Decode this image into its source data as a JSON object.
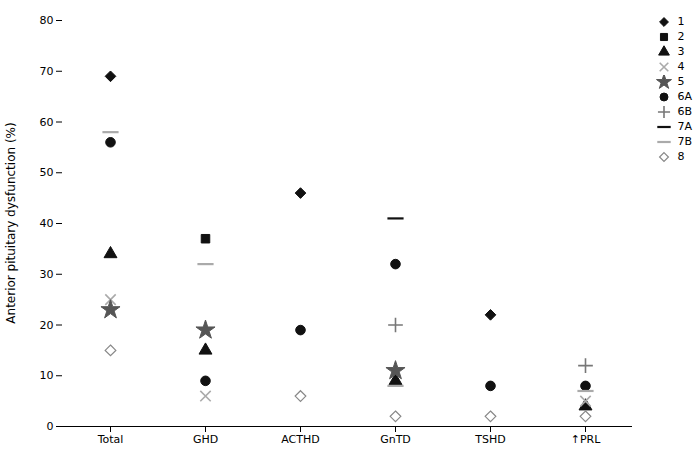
{
  "chart_data": {
    "type": "scatter",
    "ylabel": "Anterior pituitary dysfunction (%)",
    "categories": [
      "Total",
      "GHD",
      "ACTHD",
      "GnTD",
      "TSHD",
      "↑PRL"
    ],
    "ylim": [
      0,
      80
    ],
    "yticks": [
      0,
      10,
      20,
      30,
      40,
      50,
      60,
      70,
      80
    ],
    "legend": "upper right",
    "series": [
      {
        "name": "1",
        "marker": "diamond",
        "color": "#111111",
        "values": [
          69,
          null,
          46,
          null,
          22,
          null
        ]
      },
      {
        "name": "2",
        "marker": "square",
        "color": "#111111",
        "values": [
          null,
          37,
          null,
          null,
          null,
          null
        ]
      },
      {
        "name": "3",
        "marker": "triangle",
        "color": "#111111",
        "values": [
          34,
          15,
          null,
          9,
          null,
          4
        ]
      },
      {
        "name": "4",
        "marker": "x",
        "color": "#aaaaaa",
        "values": [
          25,
          6,
          null,
          null,
          null,
          5
        ]
      },
      {
        "name": "5",
        "marker": "star",
        "color": "#555555",
        "values": [
          23,
          19,
          null,
          11,
          null,
          null
        ]
      },
      {
        "name": "6A",
        "marker": "circle",
        "color": "#111111",
        "values": [
          56,
          9,
          19,
          32,
          8,
          8
        ]
      },
      {
        "name": "6B",
        "marker": "plus",
        "color": "#777777",
        "values": [
          null,
          null,
          null,
          20,
          null,
          12
        ]
      },
      {
        "name": "7A",
        "marker": "hline",
        "color": "#111111",
        "values": [
          null,
          null,
          null,
          41,
          null,
          null
        ]
      },
      {
        "name": "7B",
        "marker": "hline",
        "color": "#aaaaaa",
        "values": [
          58,
          32,
          null,
          8,
          null,
          7
        ]
      },
      {
        "name": "8",
        "marker": "diamond-open",
        "color": "#888888",
        "values": [
          15,
          null,
          6,
          2,
          2,
          2
        ]
      }
    ]
  }
}
